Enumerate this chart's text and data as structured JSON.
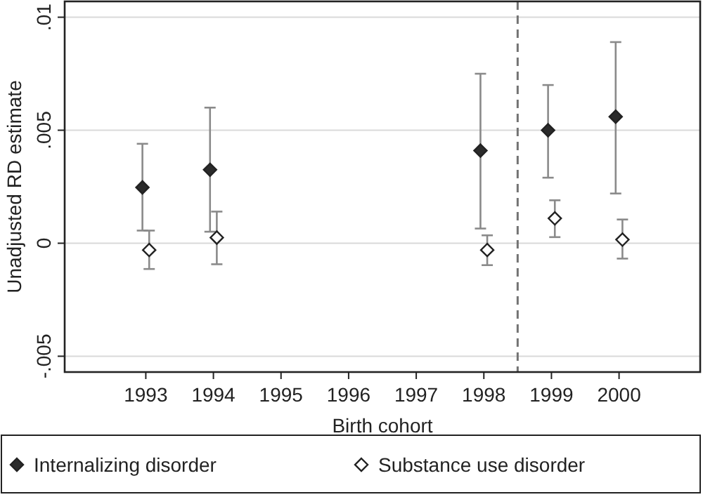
{
  "chart_data": {
    "type": "scatter",
    "xlabel": "Birth cohort",
    "ylabel": "Unadjusted RD estimate",
    "xlim": [
      1991.8,
      2001.2
    ],
    "xticks": [
      1993,
      1994,
      1995,
      1996,
      1997,
      1998,
      1999,
      2000
    ],
    "ylim": [
      -0.0057,
      0.0107
    ],
    "yticks": [
      {
        "value": -0.005,
        "label": "-.005"
      },
      0,
      {
        "value": 0.005,
        "label": ".005"
      },
      {
        "value": 0.01,
        "label": ".01"
      }
    ],
    "grid": "y",
    "legend": "bottom",
    "marker": "diamond",
    "ref_lines": [
      {
        "axis": "x",
        "value": 1998.5,
        "color": "#737373",
        "line_style": "dashed"
      }
    ],
    "series": [
      {
        "name": "Internalizing disorder",
        "color": "#2b2b2b",
        "x": [
          1992.95,
          1993.95,
          1997.95,
          1998.95,
          1999.95
        ],
        "values": [
          0.00247,
          0.00325,
          0.0041,
          0.005,
          0.0056
        ],
        "errors": [
          [
            0.00056,
            0.0044
          ],
          [
            0.00051,
            0.006
          ],
          [
            0.00065,
            0.0075
          ],
          [
            0.0029,
            0.007
          ],
          [
            0.0022,
            0.0089
          ]
        ]
      },
      {
        "name": "Substance use disorder",
        "color": "#ffffff",
        "x": [
          1993.05,
          1994.05,
          1998.05,
          1999.05,
          2000.05
        ],
        "values": [
          -0.0003,
          0.00025,
          -0.0003,
          0.0011,
          0.00016
        ],
        "errors": [
          [
            -0.00114,
            0.00056
          ],
          [
            -0.00093,
            0.0014
          ],
          [
            -0.00097,
            0.00035
          ],
          [
            0.00027,
            0.0019
          ],
          [
            -0.00068,
            0.00105
          ]
        ]
      }
    ]
  }
}
